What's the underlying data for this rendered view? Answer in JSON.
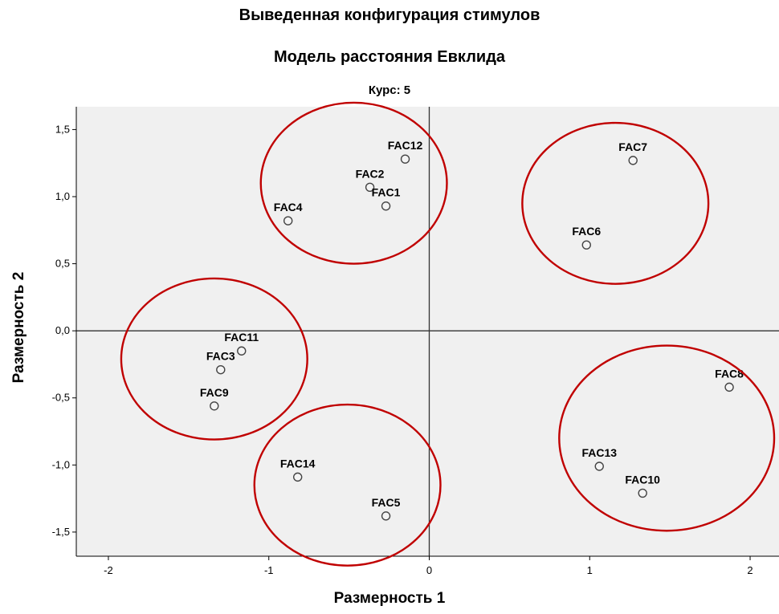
{
  "chart_data": {
    "type": "scatter",
    "title": "Выведенная конфигурация стимулов",
    "subtitle": "Модель расстояния Евклида",
    "panel_label": "Курс: 5",
    "xlabel": "Размерность 1",
    "ylabel": "Размерность 2",
    "xlim": [
      -2.2,
      2.18
    ],
    "ylim": [
      -1.68,
      1.67
    ],
    "xticks": [
      -2,
      -1,
      0,
      1,
      2
    ],
    "xtick_labels": [
      "-2",
      "-1",
      "0",
      "1",
      "2"
    ],
    "yticks": [
      1.5,
      1.0,
      0.5,
      0.0,
      -0.5,
      -1.0,
      -1.5
    ],
    "ytick_labels": [
      "1,5",
      "1,0",
      "0,5",
      "0,0",
      "-0,5",
      "-1,0",
      "-1,5"
    ],
    "grid": false,
    "reference_lines": {
      "x": 0,
      "y": 0
    },
    "background_color": "#f0f0f0",
    "point_color": "#444444",
    "cluster_color": "#c00000",
    "points": [
      {
        "label": "FAC12",
        "x": -0.15,
        "y": 1.28
      },
      {
        "label": "FAC2",
        "x": -0.37,
        "y": 1.07
      },
      {
        "label": "FAC1",
        "x": -0.27,
        "y": 0.93
      },
      {
        "label": "FAC4",
        "x": -0.88,
        "y": 0.82
      },
      {
        "label": "FAC7",
        "x": 1.27,
        "y": 1.27
      },
      {
        "label": "FAC6",
        "x": 0.98,
        "y": 0.64
      },
      {
        "label": "FAC11",
        "x": -1.17,
        "y": -0.15
      },
      {
        "label": "FAC3",
        "x": -1.3,
        "y": -0.29
      },
      {
        "label": "FAC9",
        "x": -1.34,
        "y": -0.56
      },
      {
        "label": "FAC14",
        "x": -0.82,
        "y": -1.09
      },
      {
        "label": "FAC5",
        "x": -0.27,
        "y": -1.38
      },
      {
        "label": "FAC8",
        "x": 1.87,
        "y": -0.42
      },
      {
        "label": "FAC13",
        "x": 1.06,
        "y": -1.01
      },
      {
        "label": "FAC10",
        "x": 1.33,
        "y": -1.21
      }
    ],
    "clusters": [
      {
        "cx": -0.47,
        "cy": 1.1,
        "rx": 0.58,
        "ry": 0.6
      },
      {
        "cx": 1.16,
        "cy": 0.95,
        "rx": 0.58,
        "ry": 0.6
      },
      {
        "cx": -1.34,
        "cy": -0.21,
        "rx": 0.58,
        "ry": 0.6
      },
      {
        "cx": -0.51,
        "cy": -1.15,
        "rx": 0.58,
        "ry": 0.6
      },
      {
        "cx": 1.48,
        "cy": -0.8,
        "rx": 0.67,
        "ry": 0.69
      }
    ]
  }
}
